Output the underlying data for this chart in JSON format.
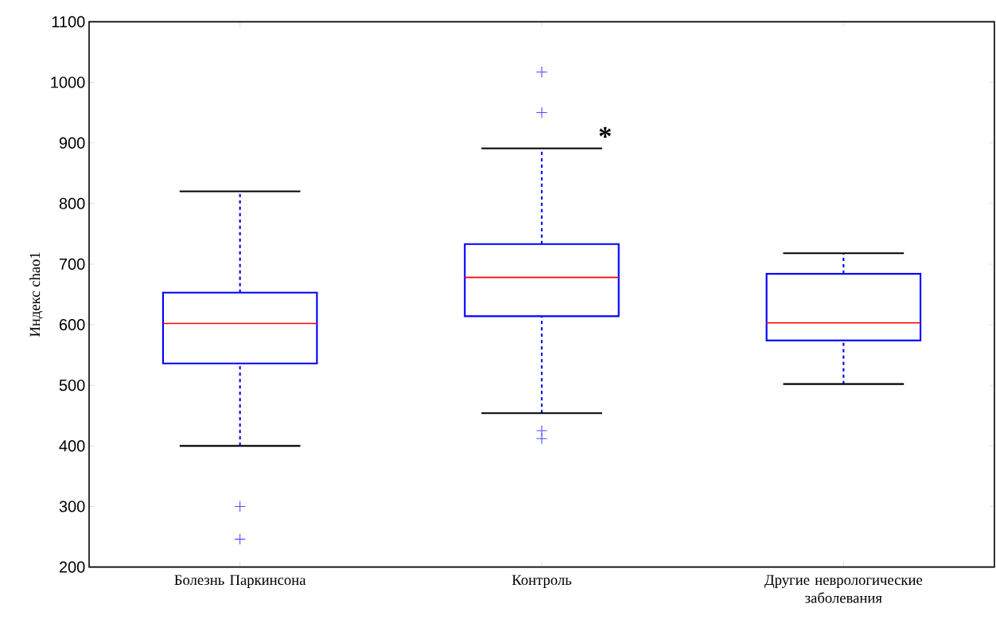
{
  "chart_data": {
    "type": "box",
    "ylabel": "Индекс chao1",
    "categories": [
      "Болезнь Паркинсона",
      "Контроль",
      "Другие неврологические заболевания"
    ],
    "boxes": [
      {
        "low": 400,
        "q1": 536,
        "median": 602,
        "q3": 653,
        "high": 820,
        "outliers": [
          300,
          246
        ]
      },
      {
        "low": 454,
        "q1": 614,
        "median": 678,
        "q3": 733,
        "high": 891,
        "outliers": [
          1017,
          950,
          425,
          412
        ]
      },
      {
        "low": 502,
        "q1": 574,
        "median": 603,
        "q3": 684,
        "high": 718
      }
    ],
    "color": "#0000ff",
    "ylim": [
      200,
      1100
    ],
    "yticks": [
      200,
      300,
      400,
      500,
      600,
      700,
      800,
      900,
      1000,
      1100
    ],
    "annotations": [
      "*"
    ],
    "marker": "cross",
    "grid": false
  }
}
